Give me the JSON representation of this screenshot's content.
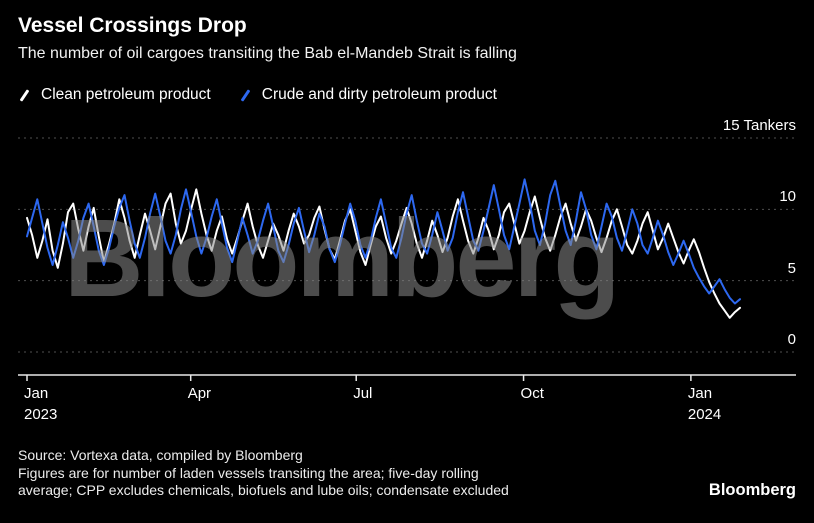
{
  "header": {
    "title": "Vessel Crossings Drop",
    "subtitle": "The number of oil cargoes transiting the Bab el-Mandeb Strait is falling"
  },
  "watermark": "Bloomberg",
  "footer": {
    "source_line": "Source: Vortexa data, compiled by Bloomberg",
    "note_line1": "Figures are for number of laden vessels transiting the area; five-day rolling",
    "note_line2": "average; CPP excludes chemicals, biofuels and lube oils; condensate excluded",
    "brand": "Bloomberg"
  },
  "chart_data": {
    "type": "line",
    "title": "Vessel Crossings Drop",
    "subtitle": "The number of oil cargoes transiting the Bab el-Mandeb Strait is falling",
    "unit_label": "Tankers",
    "grid": "dotted horizontal",
    "legend_position": "top",
    "ylim": [
      0,
      15
    ],
    "yticks": [
      {
        "value": 15,
        "label": "15 Tankers"
      },
      {
        "value": 10,
        "label": "10"
      },
      {
        "value": 5,
        "label": "5"
      },
      {
        "value": 0,
        "label": "0"
      }
    ],
    "x_domain": [
      0,
      392
    ],
    "xticks": [
      {
        "day": 0,
        "label": "Jan",
        "sublabel": "2023"
      },
      {
        "day": 90,
        "label": "Apr",
        "sublabel": ""
      },
      {
        "day": 181,
        "label": "Jul",
        "sublabel": ""
      },
      {
        "day": 273,
        "label": "Oct",
        "sublabel": ""
      },
      {
        "day": 365,
        "label": "Jan",
        "sublabel": "2024"
      }
    ],
    "series": [
      {
        "name": "Clean petroleum product",
        "color": "#ffffff",
        "values": [
          9.4,
          8.2,
          6.6,
          7.8,
          9.3,
          7.1,
          5.9,
          7.6,
          9.8,
          10.4,
          8.6,
          7.1,
          8.8,
          10.1,
          8.1,
          6.3,
          7.6,
          9.0,
          10.7,
          9.4,
          7.8,
          6.6,
          8.2,
          9.7,
          8.5,
          7.2,
          8.8,
          10.4,
          11.1,
          9.0,
          7.6,
          8.5,
          10.0,
          11.4,
          9.7,
          8.2,
          7.1,
          8.5,
          9.5,
          7.9,
          6.9,
          8.0,
          9.2,
          10.4,
          8.8,
          7.5,
          6.6,
          7.8,
          9.0,
          8.2,
          7.1,
          8.5,
          9.7,
          8.8,
          7.6,
          8.2,
          9.4,
          10.2,
          8.6,
          7.2,
          6.5,
          7.8,
          9.2,
          10.0,
          8.5,
          7.0,
          6.1,
          7.5,
          8.8,
          9.5,
          8.0,
          6.9,
          7.8,
          9.0,
          10.1,
          9.0,
          7.6,
          6.6,
          7.8,
          9.2,
          8.2,
          7.0,
          8.0,
          9.5,
          10.7,
          9.2,
          7.8,
          6.9,
          8.0,
          9.4,
          8.5,
          7.2,
          8.2,
          9.8,
          10.4,
          9.0,
          7.6,
          8.5,
          9.8,
          10.9,
          9.4,
          8.0,
          7.1,
          8.2,
          9.5,
          10.4,
          9.0,
          7.8,
          8.8,
          10.0,
          9.2,
          8.0,
          7.0,
          8.0,
          9.2,
          10.0,
          8.8,
          7.5,
          6.9,
          7.8,
          9.0,
          9.8,
          8.5,
          7.2,
          8.0,
          9.0,
          8.0,
          7.0,
          6.2,
          7.1,
          7.9,
          7.0,
          5.9,
          4.9,
          4.1,
          3.4,
          2.9,
          2.4,
          2.8,
          3.1
        ]
      },
      {
        "name": "Crude and dirty petroleum product",
        "color": "#2d68f0",
        "values": [
          8.1,
          9.4,
          10.7,
          9.0,
          7.3,
          6.1,
          7.5,
          9.1,
          8.0,
          6.6,
          7.8,
          9.4,
          10.4,
          8.8,
          7.1,
          6.1,
          7.3,
          8.8,
          10.1,
          11.0,
          9.2,
          7.6,
          6.6,
          8.0,
          9.7,
          11.1,
          9.5,
          7.8,
          6.9,
          8.2,
          10.0,
          11.4,
          9.8,
          8.1,
          6.9,
          8.0,
          9.5,
          10.7,
          9.0,
          7.3,
          6.3,
          7.8,
          9.4,
          8.2,
          6.9,
          7.8,
          9.2,
          10.4,
          8.8,
          7.1,
          6.3,
          7.5,
          9.0,
          10.1,
          8.5,
          7.0,
          8.2,
          9.7,
          8.8,
          7.2,
          6.3,
          7.5,
          9.0,
          10.4,
          9.2,
          7.5,
          6.6,
          7.8,
          9.4,
          10.7,
          9.0,
          7.3,
          6.6,
          8.0,
          9.7,
          11.0,
          9.2,
          7.6,
          6.9,
          8.2,
          9.8,
          8.5,
          7.1,
          8.0,
          9.8,
          11.2,
          9.5,
          7.8,
          7.1,
          8.5,
          10.1,
          11.7,
          10.0,
          8.2,
          7.2,
          8.8,
          10.4,
          12.1,
          10.5,
          8.5,
          7.5,
          9.0,
          11.0,
          12.0,
          10.2,
          8.5,
          7.5,
          9.2,
          11.2,
          10.0,
          8.2,
          7.2,
          8.8,
          10.4,
          9.5,
          8.0,
          7.1,
          8.5,
          10.0,
          9.0,
          7.5,
          6.9,
          8.0,
          9.2,
          8.2,
          7.0,
          6.1,
          6.9,
          7.8,
          6.9,
          5.9,
          5.2,
          4.6,
          4.1,
          4.6,
          5.1,
          4.4,
          3.8,
          3.4,
          3.7
        ]
      }
    ]
  }
}
